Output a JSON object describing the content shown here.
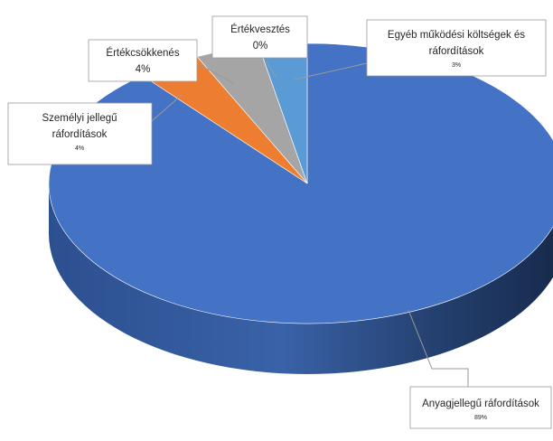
{
  "chart_data": {
    "type": "pie",
    "style": "3d",
    "slices": [
      {
        "label": "Anyagjellegű ráfordítások",
        "value": 89,
        "display": "89%",
        "color": "#4472c4"
      },
      {
        "label": "Személyi jellegű ráfordítások",
        "value": 4,
        "display": "4%",
        "color": "#ed7d31"
      },
      {
        "label": "Értékcsökkenés",
        "value": 4,
        "display": "4%",
        "color": "#a5a5a5"
      },
      {
        "label": "Értékvesztés",
        "value": 0,
        "display": "0%",
        "color": "#ffc000"
      },
      {
        "label": "Egyéb működési költségek és ráfordítások",
        "value": 3,
        "display": "3%",
        "color": "#5b9bd5"
      }
    ]
  },
  "labels": {
    "anyag": {
      "lines": [
        "Anyagjellegű ráfordítások"
      ],
      "pct": "89%"
    },
    "szemelyi": {
      "lines": [
        "Személyi jellegű",
        "ráfordítások"
      ],
      "pct": "4%"
    },
    "ertekcs": {
      "lines": [
        "Értékcsökkenés"
      ],
      "pct": "4%"
    },
    "ertekv": {
      "lines": [
        "Értékvesztés"
      ],
      "pct": "0%"
    },
    "egyeb": {
      "lines": [
        "Egyéb működési költségek és",
        "ráfordítások"
      ],
      "pct": "3%"
    }
  }
}
